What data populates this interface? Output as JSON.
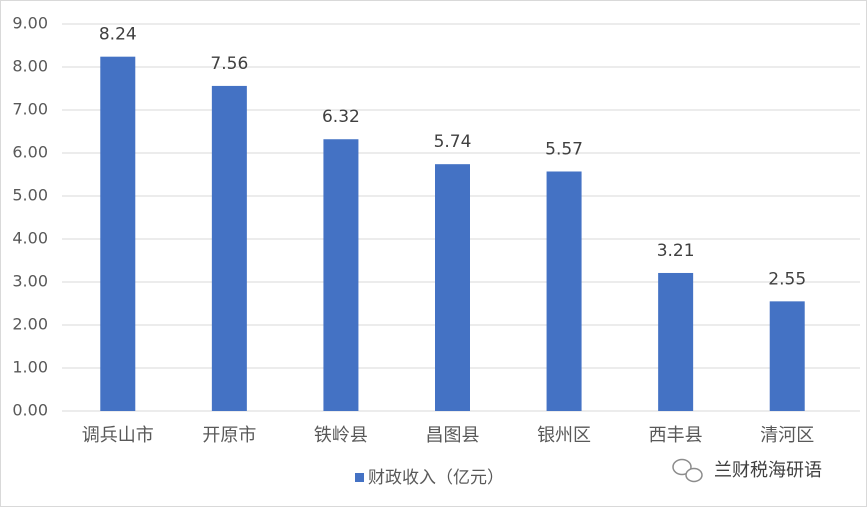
{
  "chart_data": {
    "type": "bar",
    "categories": [
      "调兵山市",
      "开原市",
      "铁岭县",
      "昌图县",
      "银州区",
      "西丰县",
      "清河区"
    ],
    "series": [
      {
        "name": "财政收入（亿元）",
        "color": "#4472c4",
        "values": [
          8.24,
          7.56,
          6.32,
          5.74,
          5.57,
          3.21,
          2.55
        ]
      }
    ],
    "ylim": [
      0,
      9
    ],
    "yticks": [
      {
        "value": 0,
        "label": "0.00"
      },
      {
        "value": 1,
        "label": "1.00"
      },
      {
        "value": 2,
        "label": "2.00"
      },
      {
        "value": 3,
        "label": "3.00"
      },
      {
        "value": 4,
        "label": "4.00"
      },
      {
        "value": 5,
        "label": "5.00"
      },
      {
        "value": 6,
        "label": "6.00"
      },
      {
        "value": 7,
        "label": "7.00"
      },
      {
        "value": 8,
        "label": "8.00"
      },
      {
        "value": 9,
        "label": "9.00"
      }
    ],
    "grid": true,
    "legend": "bottom",
    "watermark": "兰财税海研语"
  }
}
